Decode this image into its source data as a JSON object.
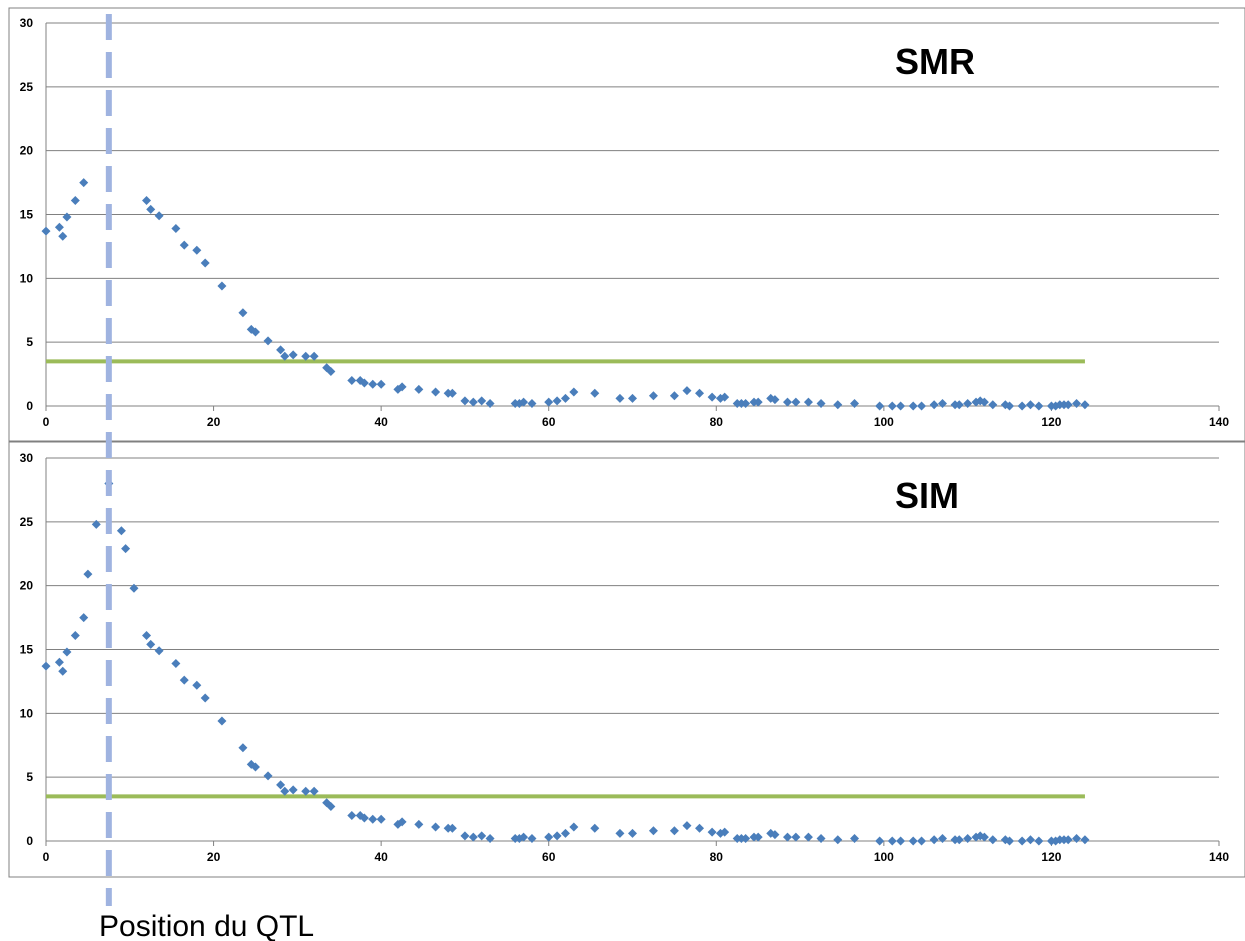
{
  "caption": "Position du QTL",
  "colors": {
    "points": "#4a7ebb",
    "threshold": "#9bbb59",
    "qtl_line": "#9fb3e0",
    "grid": "#808080",
    "frame": "#808080"
  },
  "qtl_position": 7.5,
  "threshold_value": 3.5,
  "chart_data": [
    {
      "type": "scatter",
      "title": "SMR",
      "xlim": [
        0,
        140
      ],
      "ylim": [
        0,
        30
      ],
      "xticks": [
        0,
        20,
        40,
        60,
        80,
        100,
        120,
        140
      ],
      "yticks": [
        0,
        5,
        10,
        15,
        20,
        25,
        30
      ],
      "grid": true,
      "threshold": 3.5,
      "threshold_range": [
        0,
        124
      ],
      "points": [
        [
          0,
          13.7
        ],
        [
          1.6,
          14
        ],
        [
          2,
          13.3
        ],
        [
          2.5,
          14.8
        ],
        [
          3.5,
          16.1
        ],
        [
          4.5,
          17.5
        ],
        [
          12,
          16.1
        ],
        [
          12.5,
          15.4
        ],
        [
          13.5,
          14.9
        ],
        [
          15.5,
          13.9
        ],
        [
          16.5,
          12.6
        ],
        [
          18,
          12.2
        ],
        [
          19,
          11.2
        ],
        [
          21,
          9.4
        ],
        [
          23.5,
          7.3
        ],
        [
          24.5,
          6
        ],
        [
          25,
          5.8
        ],
        [
          26.5,
          5.1
        ],
        [
          28,
          4.4
        ],
        [
          28.5,
          3.9
        ],
        [
          29.5,
          4
        ],
        [
          31,
          3.9
        ],
        [
          32,
          3.9
        ],
        [
          33.5,
          3
        ],
        [
          34,
          2.7
        ],
        [
          36.5,
          2
        ],
        [
          37.5,
          2
        ],
        [
          38,
          1.8
        ],
        [
          39,
          1.7
        ],
        [
          40,
          1.7
        ],
        [
          42,
          1.3
        ],
        [
          42.5,
          1.5
        ],
        [
          44.5,
          1.3
        ],
        [
          46.5,
          1.1
        ],
        [
          48,
          1
        ],
        [
          48.5,
          1
        ],
        [
          50,
          0.4
        ],
        [
          51,
          0.3
        ],
        [
          52,
          0.4
        ],
        [
          53,
          0.2
        ],
        [
          56,
          0.2
        ],
        [
          56.5,
          0.2
        ],
        [
          57,
          0.3
        ],
        [
          58,
          0.2
        ],
        [
          60,
          0.3
        ],
        [
          61,
          0.4
        ],
        [
          62,
          0.6
        ],
        [
          63,
          1.1
        ],
        [
          65.5,
          1
        ],
        [
          68.5,
          0.6
        ],
        [
          70,
          0.6
        ],
        [
          72.5,
          0.8
        ],
        [
          75,
          0.8
        ],
        [
          76.5,
          1.2
        ],
        [
          78,
          1
        ],
        [
          79.5,
          0.7
        ],
        [
          80.5,
          0.6
        ],
        [
          81,
          0.7
        ],
        [
          82.5,
          0.2
        ],
        [
          83,
          0.2
        ],
        [
          83.5,
          0.2
        ],
        [
          84.5,
          0.3
        ],
        [
          85,
          0.3
        ],
        [
          86.5,
          0.6
        ],
        [
          87,
          0.5
        ],
        [
          88.5,
          0.3
        ],
        [
          89.5,
          0.3
        ],
        [
          91,
          0.3
        ],
        [
          92.5,
          0.2
        ],
        [
          94.5,
          0.1
        ],
        [
          96.5,
          0.2
        ],
        [
          99.5,
          0
        ],
        [
          101,
          0
        ],
        [
          102,
          0
        ],
        [
          103.5,
          0
        ],
        [
          104.5,
          0
        ],
        [
          106,
          0.1
        ],
        [
          107,
          0.2
        ],
        [
          108.5,
          0.1
        ],
        [
          109,
          0.1
        ],
        [
          110,
          0.2
        ],
        [
          111,
          0.3
        ],
        [
          111.5,
          0.4
        ],
        [
          112,
          0.3
        ],
        [
          113,
          0.1
        ],
        [
          114.5,
          0.1
        ],
        [
          115,
          0
        ],
        [
          116.5,
          0
        ],
        [
          117.5,
          0.1
        ],
        [
          118.5,
          0
        ],
        [
          120,
          0
        ],
        [
          120.5,
          0
        ],
        [
          121,
          0.1
        ],
        [
          121.5,
          0.1
        ],
        [
          122,
          0.1
        ],
        [
          123,
          0.2
        ],
        [
          124,
          0.1
        ]
      ]
    },
    {
      "type": "scatter",
      "title": "SIM",
      "xlim": [
        0,
        140
      ],
      "ylim": [
        0,
        30
      ],
      "xticks": [
        0,
        20,
        40,
        60,
        80,
        100,
        120,
        140
      ],
      "yticks": [
        0,
        5,
        10,
        15,
        20,
        25,
        30
      ],
      "grid": true,
      "threshold": 3.5,
      "threshold_range": [
        0,
        124
      ],
      "points": [
        [
          0,
          13.7
        ],
        [
          1.6,
          14
        ],
        [
          2,
          13.3
        ],
        [
          2.5,
          14.8
        ],
        [
          3.5,
          16.1
        ],
        [
          4.5,
          17.5
        ],
        [
          5,
          20.9
        ],
        [
          6,
          24.8
        ],
        [
          7.5,
          28
        ],
        [
          9,
          24.3
        ],
        [
          9.5,
          22.9
        ],
        [
          10.5,
          19.8
        ],
        [
          12,
          16.1
        ],
        [
          12.5,
          15.4
        ],
        [
          13.5,
          14.9
        ],
        [
          15.5,
          13.9
        ],
        [
          16.5,
          12.6
        ],
        [
          18,
          12.2
        ],
        [
          19,
          11.2
        ],
        [
          21,
          9.4
        ],
        [
          23.5,
          7.3
        ],
        [
          24.5,
          6
        ],
        [
          25,
          5.8
        ],
        [
          26.5,
          5.1
        ],
        [
          28,
          4.4
        ],
        [
          28.5,
          3.9
        ],
        [
          29.5,
          4
        ],
        [
          31,
          3.9
        ],
        [
          32,
          3.9
        ],
        [
          33.5,
          3
        ],
        [
          34,
          2.7
        ],
        [
          36.5,
          2
        ],
        [
          37.5,
          2
        ],
        [
          38,
          1.8
        ],
        [
          39,
          1.7
        ],
        [
          40,
          1.7
        ],
        [
          42,
          1.3
        ],
        [
          42.5,
          1.5
        ],
        [
          44.5,
          1.3
        ],
        [
          46.5,
          1.1
        ],
        [
          48,
          1
        ],
        [
          48.5,
          1
        ],
        [
          50,
          0.4
        ],
        [
          51,
          0.3
        ],
        [
          52,
          0.4
        ],
        [
          53,
          0.2
        ],
        [
          56,
          0.2
        ],
        [
          56.5,
          0.2
        ],
        [
          57,
          0.3
        ],
        [
          58,
          0.2
        ],
        [
          60,
          0.3
        ],
        [
          61,
          0.4
        ],
        [
          62,
          0.6
        ],
        [
          63,
          1.1
        ],
        [
          65.5,
          1
        ],
        [
          68.5,
          0.6
        ],
        [
          70,
          0.6
        ],
        [
          72.5,
          0.8
        ],
        [
          75,
          0.8
        ],
        [
          76.5,
          1.2
        ],
        [
          78,
          1
        ],
        [
          79.5,
          0.7
        ],
        [
          80.5,
          0.6
        ],
        [
          81,
          0.7
        ],
        [
          82.5,
          0.2
        ],
        [
          83,
          0.2
        ],
        [
          83.5,
          0.2
        ],
        [
          84.5,
          0.3
        ],
        [
          85,
          0.3
        ],
        [
          86.5,
          0.6
        ],
        [
          87,
          0.5
        ],
        [
          88.5,
          0.3
        ],
        [
          89.5,
          0.3
        ],
        [
          91,
          0.3
        ],
        [
          92.5,
          0.2
        ],
        [
          94.5,
          0.1
        ],
        [
          96.5,
          0.2
        ],
        [
          99.5,
          0
        ],
        [
          101,
          0
        ],
        [
          102,
          0
        ],
        [
          103.5,
          0
        ],
        [
          104.5,
          0
        ],
        [
          106,
          0.1
        ],
        [
          107,
          0.2
        ],
        [
          108.5,
          0.1
        ],
        [
          109,
          0.1
        ],
        [
          110,
          0.2
        ],
        [
          111,
          0.3
        ],
        [
          111.5,
          0.4
        ],
        [
          112,
          0.3
        ],
        [
          113,
          0.1
        ],
        [
          114.5,
          0.1
        ],
        [
          115,
          0
        ],
        [
          116.5,
          0
        ],
        [
          117.5,
          0.1
        ],
        [
          118.5,
          0
        ],
        [
          120,
          0
        ],
        [
          120.5,
          0
        ],
        [
          121,
          0.1
        ],
        [
          121.5,
          0.1
        ],
        [
          122,
          0.1
        ],
        [
          123,
          0.2
        ],
        [
          124,
          0.1
        ]
      ]
    }
  ]
}
